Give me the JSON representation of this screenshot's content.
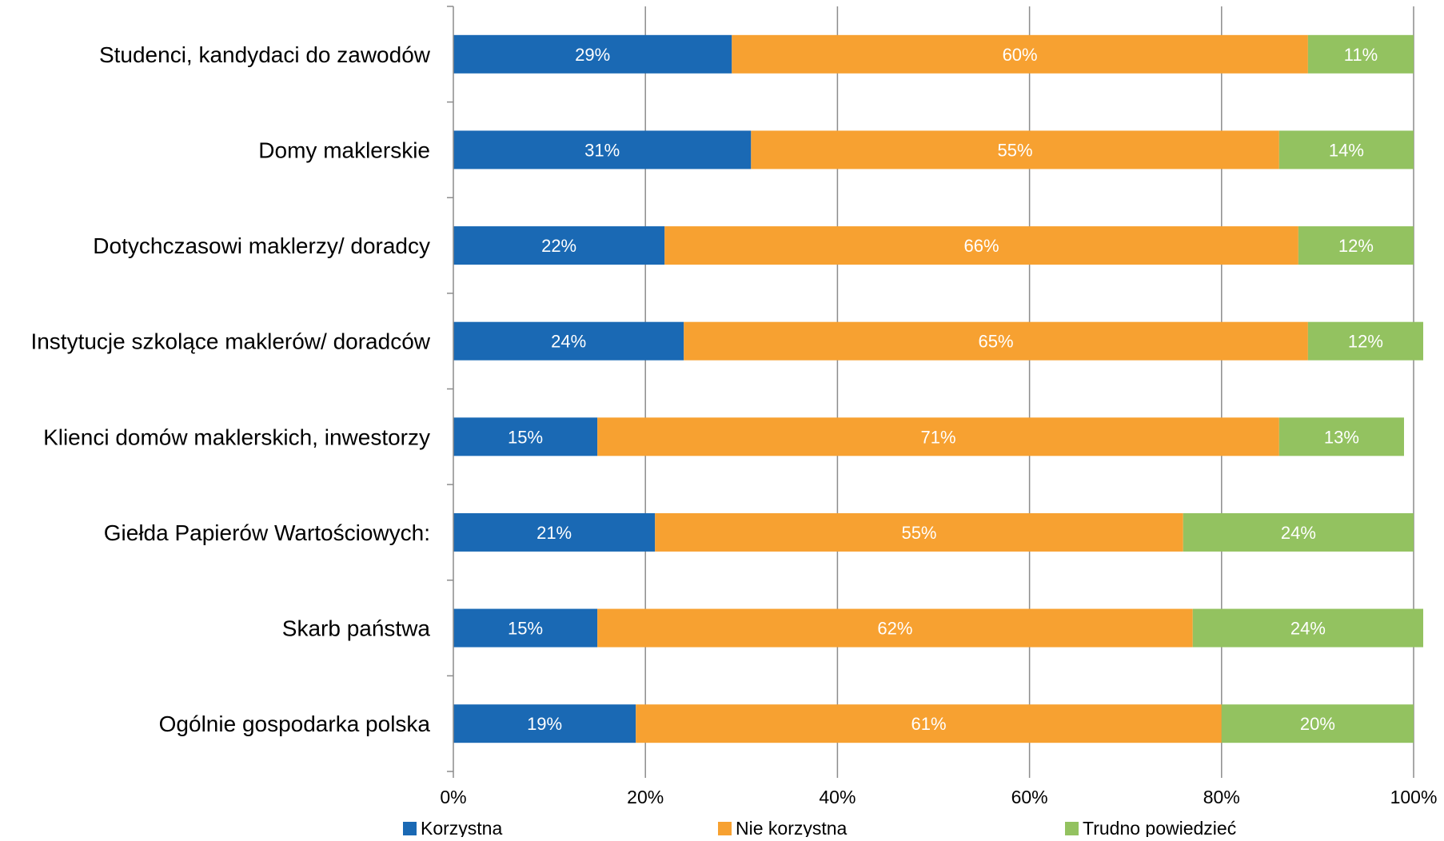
{
  "chart_data": {
    "type": "bar",
    "orientation": "horizontal",
    "stacked": "percent",
    "categories": [
      "Studenci, kandydaci do zawodów",
      "Domy maklerskie",
      "Dotychczasowi maklerzy/ doradcy",
      "Instytucje szkolące maklerów/ doradców",
      "Klienci domów maklerskich, inwestorzy",
      "Giełda Papierów Wartościowych:",
      "Skarb państwa",
      "Ogólnie gospodarka polska"
    ],
    "series": [
      {
        "name": "Korzystna",
        "color": "#1a69b4",
        "values": [
          29,
          31,
          22,
          24,
          15,
          21,
          15,
          19
        ],
        "labels": [
          "29%",
          "31%",
          "22%",
          "24%",
          "15%",
          "21%",
          "15%",
          "19%"
        ]
      },
      {
        "name": "Nie korzystna",
        "color": "#f7a131",
        "values": [
          60,
          55,
          66,
          65,
          71,
          55,
          62,
          61
        ],
        "labels": [
          "60%",
          "55%",
          "66%",
          "65%",
          "71%",
          "55%",
          "62%",
          "61%"
        ]
      },
      {
        "name": "Trudno powiedzieć",
        "color": "#93c260",
        "values": [
          11,
          14,
          12,
          12,
          13,
          24,
          24,
          20
        ],
        "labels": [
          "11%",
          "14%",
          "12%",
          "12%",
          "13%",
          "24%",
          "24%",
          "20%"
        ]
      }
    ],
    "xlim": [
      0,
      100
    ],
    "x_ticks": [
      "0%",
      "20%",
      "40%",
      "60%",
      "80%",
      "100%"
    ],
    "grid": true,
    "legend_position": "bottom",
    "title": "",
    "xlabel": "",
    "ylabel": ""
  }
}
